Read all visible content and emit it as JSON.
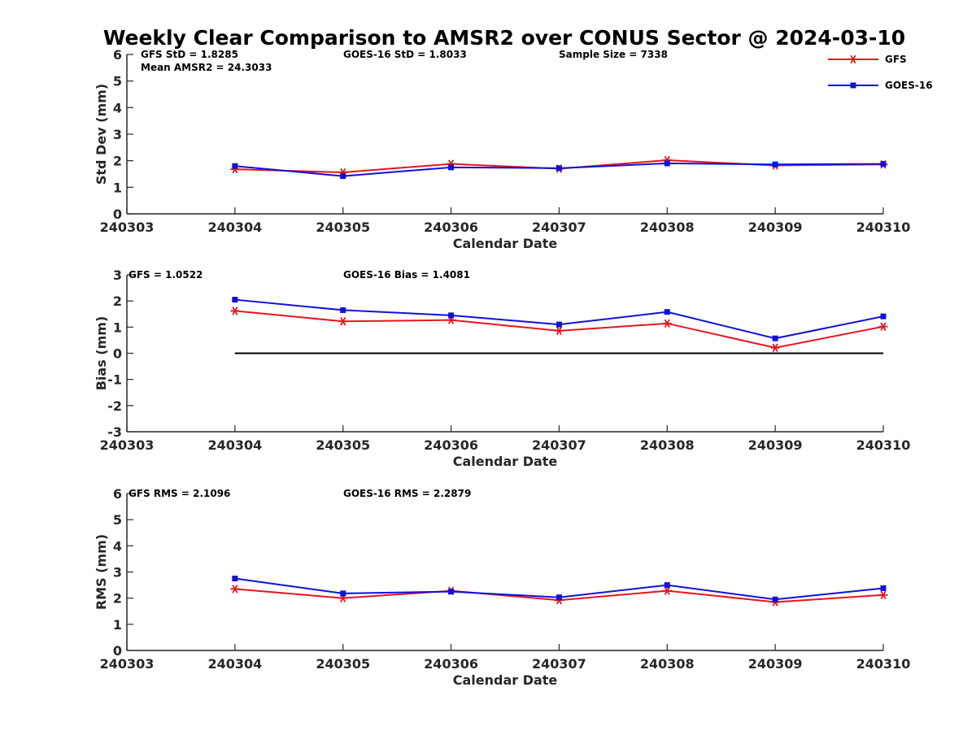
{
  "title": "Weekly Clear Comparison to AMSR2 over CONUS Sector @ 2024-03-10",
  "colors": {
    "gfs": "#e8141c",
    "goes": "#1010d8",
    "axis": "#262626",
    "zero_line": "#000000"
  },
  "legend": [
    {
      "label": "GFS",
      "marker": "asterisk",
      "color": "#e8141c"
    },
    {
      "label": "GOES-16",
      "marker": "square",
      "color": "#1010d8"
    }
  ],
  "chart_data": [
    {
      "type": "line",
      "xlabel": "Calendar Date",
      "ylabel": "Std Dev (mm)",
      "x": [
        "240303",
        "240304",
        "240305",
        "240306",
        "240307",
        "240308",
        "240309",
        "240310"
      ],
      "ylim": [
        0,
        6
      ],
      "yticks": [
        "0",
        "1",
        "2",
        "3",
        "4",
        "5",
        "6"
      ],
      "series": [
        {
          "name": "GFS",
          "values": [
            null,
            1.68,
            1.56,
            1.88,
            1.7,
            2.02,
            1.82,
            1.86
          ]
        },
        {
          "name": "GOES-16",
          "values": [
            null,
            1.8,
            1.42,
            1.75,
            1.72,
            1.9,
            1.86,
            1.88
          ]
        }
      ],
      "annotations": [
        "GFS StD = 1.8285",
        "Mean AMSR2 = 24.3033",
        "GOES-16 StD = 1.8033",
        "Sample Size = 7338"
      ]
    },
    {
      "type": "line",
      "xlabel": "Calendar Date",
      "ylabel": "Bias (mm)",
      "x": [
        "240303",
        "240304",
        "240305",
        "240306",
        "240307",
        "240308",
        "240309",
        "240310"
      ],
      "ylim": [
        -3,
        3
      ],
      "yticks": [
        "-3",
        "-2",
        "-1",
        "0",
        "1",
        "2",
        "3"
      ],
      "zero_line": true,
      "series": [
        {
          "name": "GFS",
          "values": [
            null,
            1.62,
            1.22,
            1.27,
            0.86,
            1.14,
            0.21,
            1.02
          ]
        },
        {
          "name": "GOES-16",
          "values": [
            null,
            2.05,
            1.65,
            1.45,
            1.1,
            1.58,
            0.57,
            1.41
          ]
        }
      ],
      "annotations": [
        "GFS = 1.0522",
        "GOES-16 Bias  = 1.4081"
      ]
    },
    {
      "type": "line",
      "xlabel": "Calendar Date",
      "ylabel": "RMS (mm)",
      "x": [
        "240303",
        "240304",
        "240305",
        "240306",
        "240307",
        "240308",
        "240309",
        "240310"
      ],
      "ylim": [
        0,
        6
      ],
      "yticks": [
        "0",
        "1",
        "2",
        "3",
        "4",
        "5",
        "6"
      ],
      "series": [
        {
          "name": "GFS",
          "values": [
            null,
            2.35,
            2.0,
            2.28,
            1.92,
            2.28,
            1.85,
            2.12
          ]
        },
        {
          "name": "GOES-16",
          "values": [
            null,
            2.75,
            2.18,
            2.25,
            2.03,
            2.5,
            1.95,
            2.38
          ]
        }
      ],
      "annotations": [
        "GFS RMS = 2.1096",
        "GOES-16 RMS = 2.2879"
      ]
    }
  ]
}
